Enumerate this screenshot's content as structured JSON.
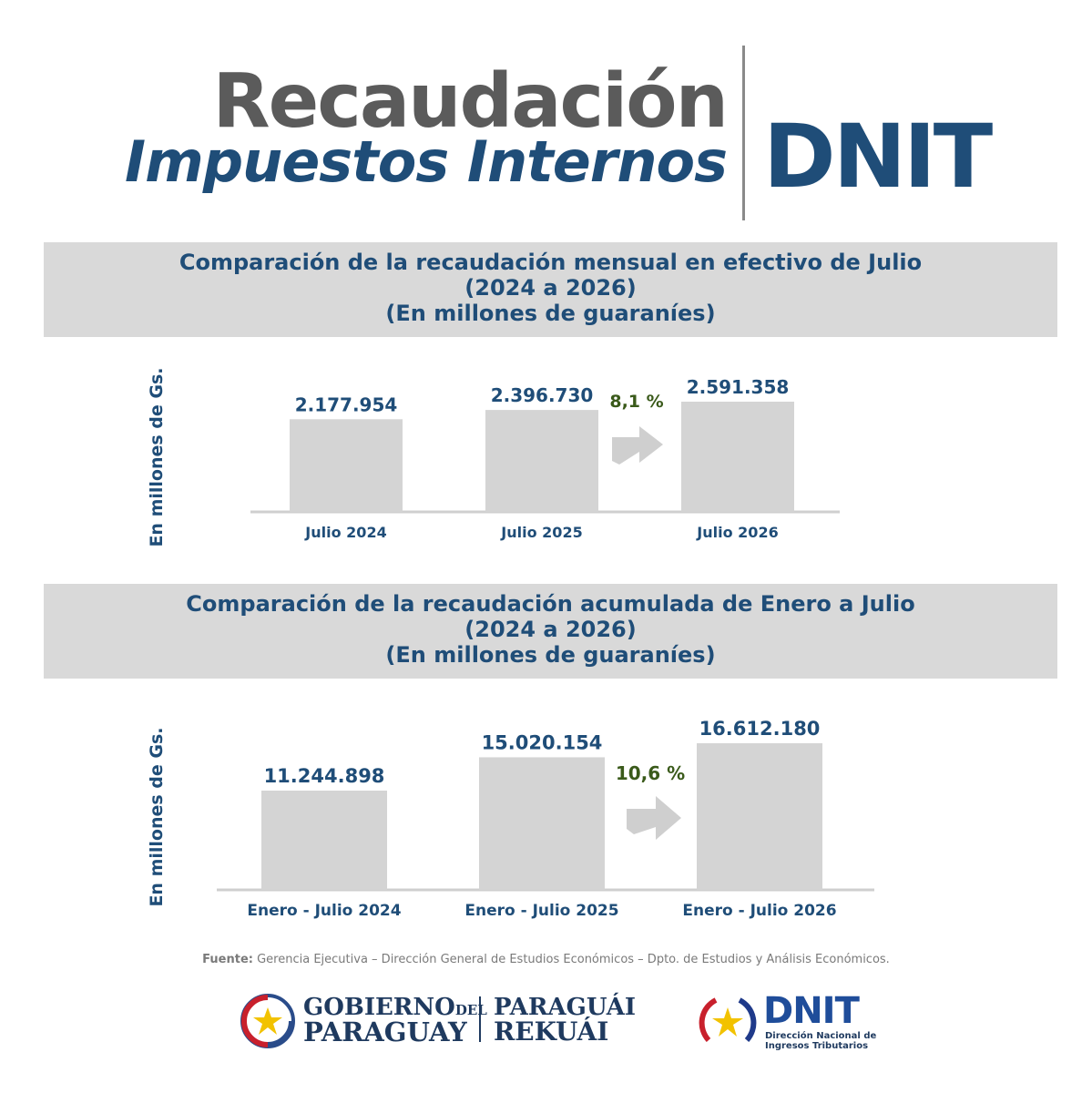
{
  "header": {
    "title_line1": "Recaudación",
    "title_line2": "Impuestos Internos",
    "brand": "DNIT"
  },
  "section1": {
    "title_line1": "Comparación de la recaudación mensual en efectivo de Julio",
    "title_line2": "(2024 a 2026)",
    "title_line3": "(En millones de guaraníes)",
    "ylabel": "En millones de Gs."
  },
  "section2": {
    "title_line1": "Comparación de la recaudación acumulada de Enero a Julio",
    "title_line2": "(2024 a 2026)",
    "title_line3": "(En millones de guaraníes)",
    "ylabel": "En millones de Gs."
  },
  "chart_data": [
    {
      "type": "bar",
      "categories": [
        "Julio 2024",
        "Julio 2025",
        "Julio 2026"
      ],
      "values": [
        2177954,
        2396730,
        2591358
      ],
      "value_labels": [
        "2.177.954",
        "2.396.730",
        "2.591.358"
      ],
      "ylabel": "En millones de Gs.",
      "annotation": "8,1 %",
      "grid": false,
      "colors": {
        "bar": "#d4d4d4",
        "value_label": "#1f4d78",
        "annotation": "#3a5a1a",
        "axis": "#cfcfcf"
      }
    },
    {
      "type": "bar",
      "categories": [
        "Enero - Julio 2024",
        "Enero - Julio 2025",
        "Enero - Julio 2026"
      ],
      "values": [
        11244898,
        15020154,
        16612180
      ],
      "value_labels": [
        "11.244.898",
        "15.020.154",
        "16.612.180"
      ],
      "ylabel": "En millones de Gs.",
      "annotation": "10,6 %",
      "grid": false,
      "colors": {
        "bar": "#d4d4d4",
        "value_label": "#1f4d78",
        "annotation": "#3a5a1a",
        "axis": "#cfcfcf"
      }
    }
  ],
  "source": {
    "label": "Fuente:",
    "text": "Gerencia Ejecutiva – Dirección General de Estudios Económicos – Dpto. de Estudios y Análisis Económicos."
  },
  "footer": {
    "gov_line1a": "GOBIERNO",
    "gov_line1b": "DEL",
    "gov_line2": "PARAGUAY",
    "slogan_line1": "PARAGUÁI",
    "slogan_line2": "REKUÁI",
    "dnit_logo": "DNIT",
    "dnit_sub1": "Dirección Nacional de",
    "dnit_sub2": "Ingresos Tributarios"
  },
  "colors": {
    "brand_blue": "#1f4d78",
    "title_gray": "#5b5b5b",
    "banner_gray": "#d9d9d9",
    "growth_green": "#3a5a1a"
  }
}
